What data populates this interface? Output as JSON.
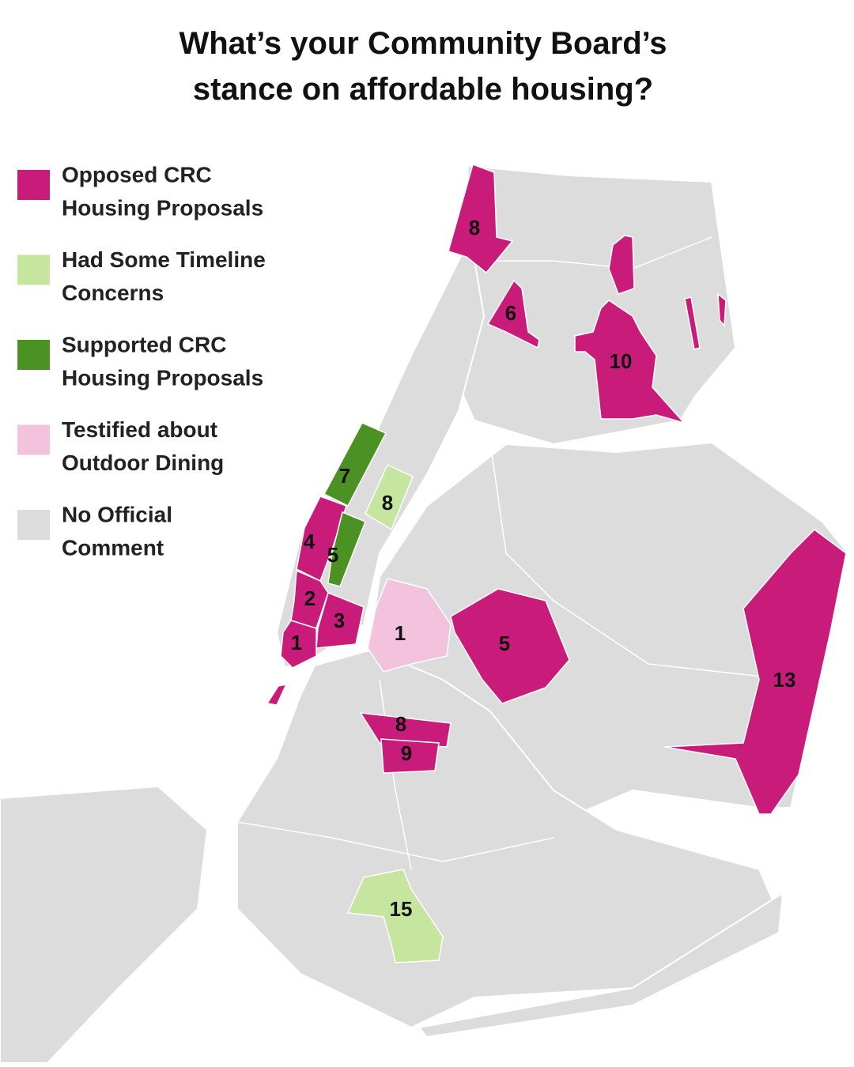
{
  "title": [
    "What’s your Community Board’s",
    "stance on affordable housing?"
  ],
  "legend": [
    {
      "label": [
        "Opposed CRC",
        "Housing Proposals"
      ],
      "color": "#c81b7a"
    },
    {
      "label": [
        "Had Some Timeline",
        "Concerns"
      ],
      "color": "#c6e6a0"
    },
    {
      "label": [
        "Supported CRC",
        "Housing Proposals"
      ],
      "color": "#4b9124"
    },
    {
      "label": [
        "Testified about",
        "Outdoor Dining"
      ],
      "color": "#f3c2dc"
    },
    {
      "label": [
        "No Official",
        "Comment"
      ],
      "color": "#dcdcdc"
    }
  ],
  "regions": [
    {
      "label": "8",
      "color": "#c81b7a"
    },
    {
      "label": "6",
      "color": "#c81b7a"
    },
    {
      "label": "10",
      "color": "#c81b7a"
    },
    {
      "label": "7",
      "color": "#4b9124"
    },
    {
      "label": "8",
      "color": "#c6e6a0"
    },
    {
      "label": "4",
      "color": "#c81b7a"
    },
    {
      "label": "5",
      "color": "#4b9124"
    },
    {
      "label": "2",
      "color": "#c81b7a"
    },
    {
      "label": "3",
      "color": "#c81b7a"
    },
    {
      "label": "1",
      "color": "#c81b7a"
    },
    {
      "label": "1",
      "color": "#f3c2dc"
    },
    {
      "label": "5",
      "color": "#c81b7a"
    },
    {
      "label": "13",
      "color": "#c81b7a"
    },
    {
      "label": "8",
      "color": "#c81b7a"
    },
    {
      "label": "9",
      "color": "#c81b7a"
    },
    {
      "label": "15",
      "color": "#c6e6a0"
    }
  ]
}
